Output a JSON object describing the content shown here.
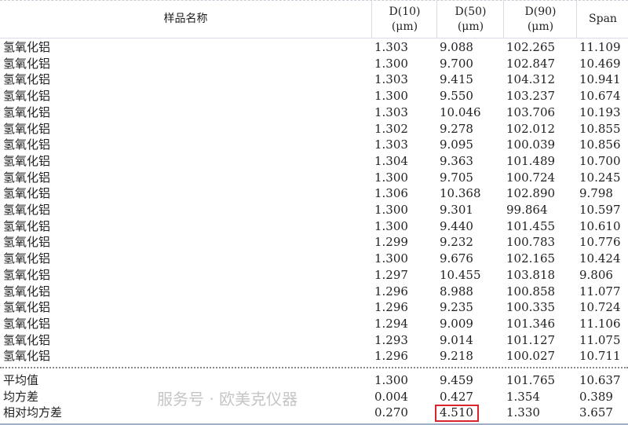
{
  "header": {
    "name": "样品名称",
    "d10": [
      "D(10)",
      "(μm)"
    ],
    "d50": [
      "D(50)",
      "(μm)"
    ],
    "d90": [
      "D(90)",
      "(μm)"
    ],
    "span": "Span"
  },
  "rows": [
    [
      "氢氧化铝",
      "1.303",
      "9.088",
      "102.265",
      "11.109"
    ],
    [
      "氢氧化铝",
      "1.300",
      "9.700",
      "102.847",
      "10.469"
    ],
    [
      "氢氧化铝",
      "1.303",
      "9.415",
      "104.312",
      "10.941"
    ],
    [
      "氢氧化铝",
      "1.300",
      "9.550",
      "103.237",
      "10.674"
    ],
    [
      "氢氧化铝",
      "1.303",
      "10.046",
      "103.706",
      "10.193"
    ],
    [
      "氢氧化铝",
      "1.302",
      "9.278",
      "102.012",
      "10.855"
    ],
    [
      "氢氧化铝",
      "1.303",
      "9.095",
      "100.039",
      "10.856"
    ],
    [
      "氢氧化铝",
      "1.304",
      "9.363",
      "101.489",
      "10.700"
    ],
    [
      "氢氧化铝",
      "1.300",
      "9.705",
      "100.724",
      "10.245"
    ],
    [
      "氢氧化铝",
      "1.306",
      "10.368",
      "102.890",
      "9.798"
    ],
    [
      "氢氧化铝",
      "1.300",
      "9.301",
      "99.864",
      "10.597"
    ],
    [
      "氢氧化铝",
      "1.300",
      "9.440",
      "101.455",
      "10.610"
    ],
    [
      "氢氧化铝",
      "1.299",
      "9.232",
      "100.783",
      "10.776"
    ],
    [
      "氢氧化铝",
      "1.300",
      "9.676",
      "102.165",
      "10.424"
    ],
    [
      "氢氧化铝",
      "1.297",
      "10.455",
      "103.818",
      "9.806"
    ],
    [
      "氢氧化铝",
      "1.296",
      "8.988",
      "100.858",
      "11.077"
    ],
    [
      "氢氧化铝",
      "1.296",
      "9.235",
      "100.335",
      "10.724"
    ],
    [
      "氢氧化铝",
      "1.294",
      "9.009",
      "101.346",
      "11.106"
    ],
    [
      "氢氧化铝",
      "1.293",
      "9.014",
      "101.127",
      "11.075"
    ],
    [
      "氢氧化铝",
      "1.296",
      "9.218",
      "100.027",
      "10.711"
    ]
  ],
  "summary": [
    [
      "平均值",
      "1.300",
      "9.459",
      "101.765",
      "10.637"
    ],
    [
      "均方差",
      "0.004",
      "0.427",
      "1.354",
      "0.389"
    ],
    [
      "相对均方差",
      "0.270",
      "4.510",
      "1.330",
      "3.657"
    ]
  ],
  "highlight_color": "#d9262c",
  "watermark": "服务号 · 欧美克仪器"
}
